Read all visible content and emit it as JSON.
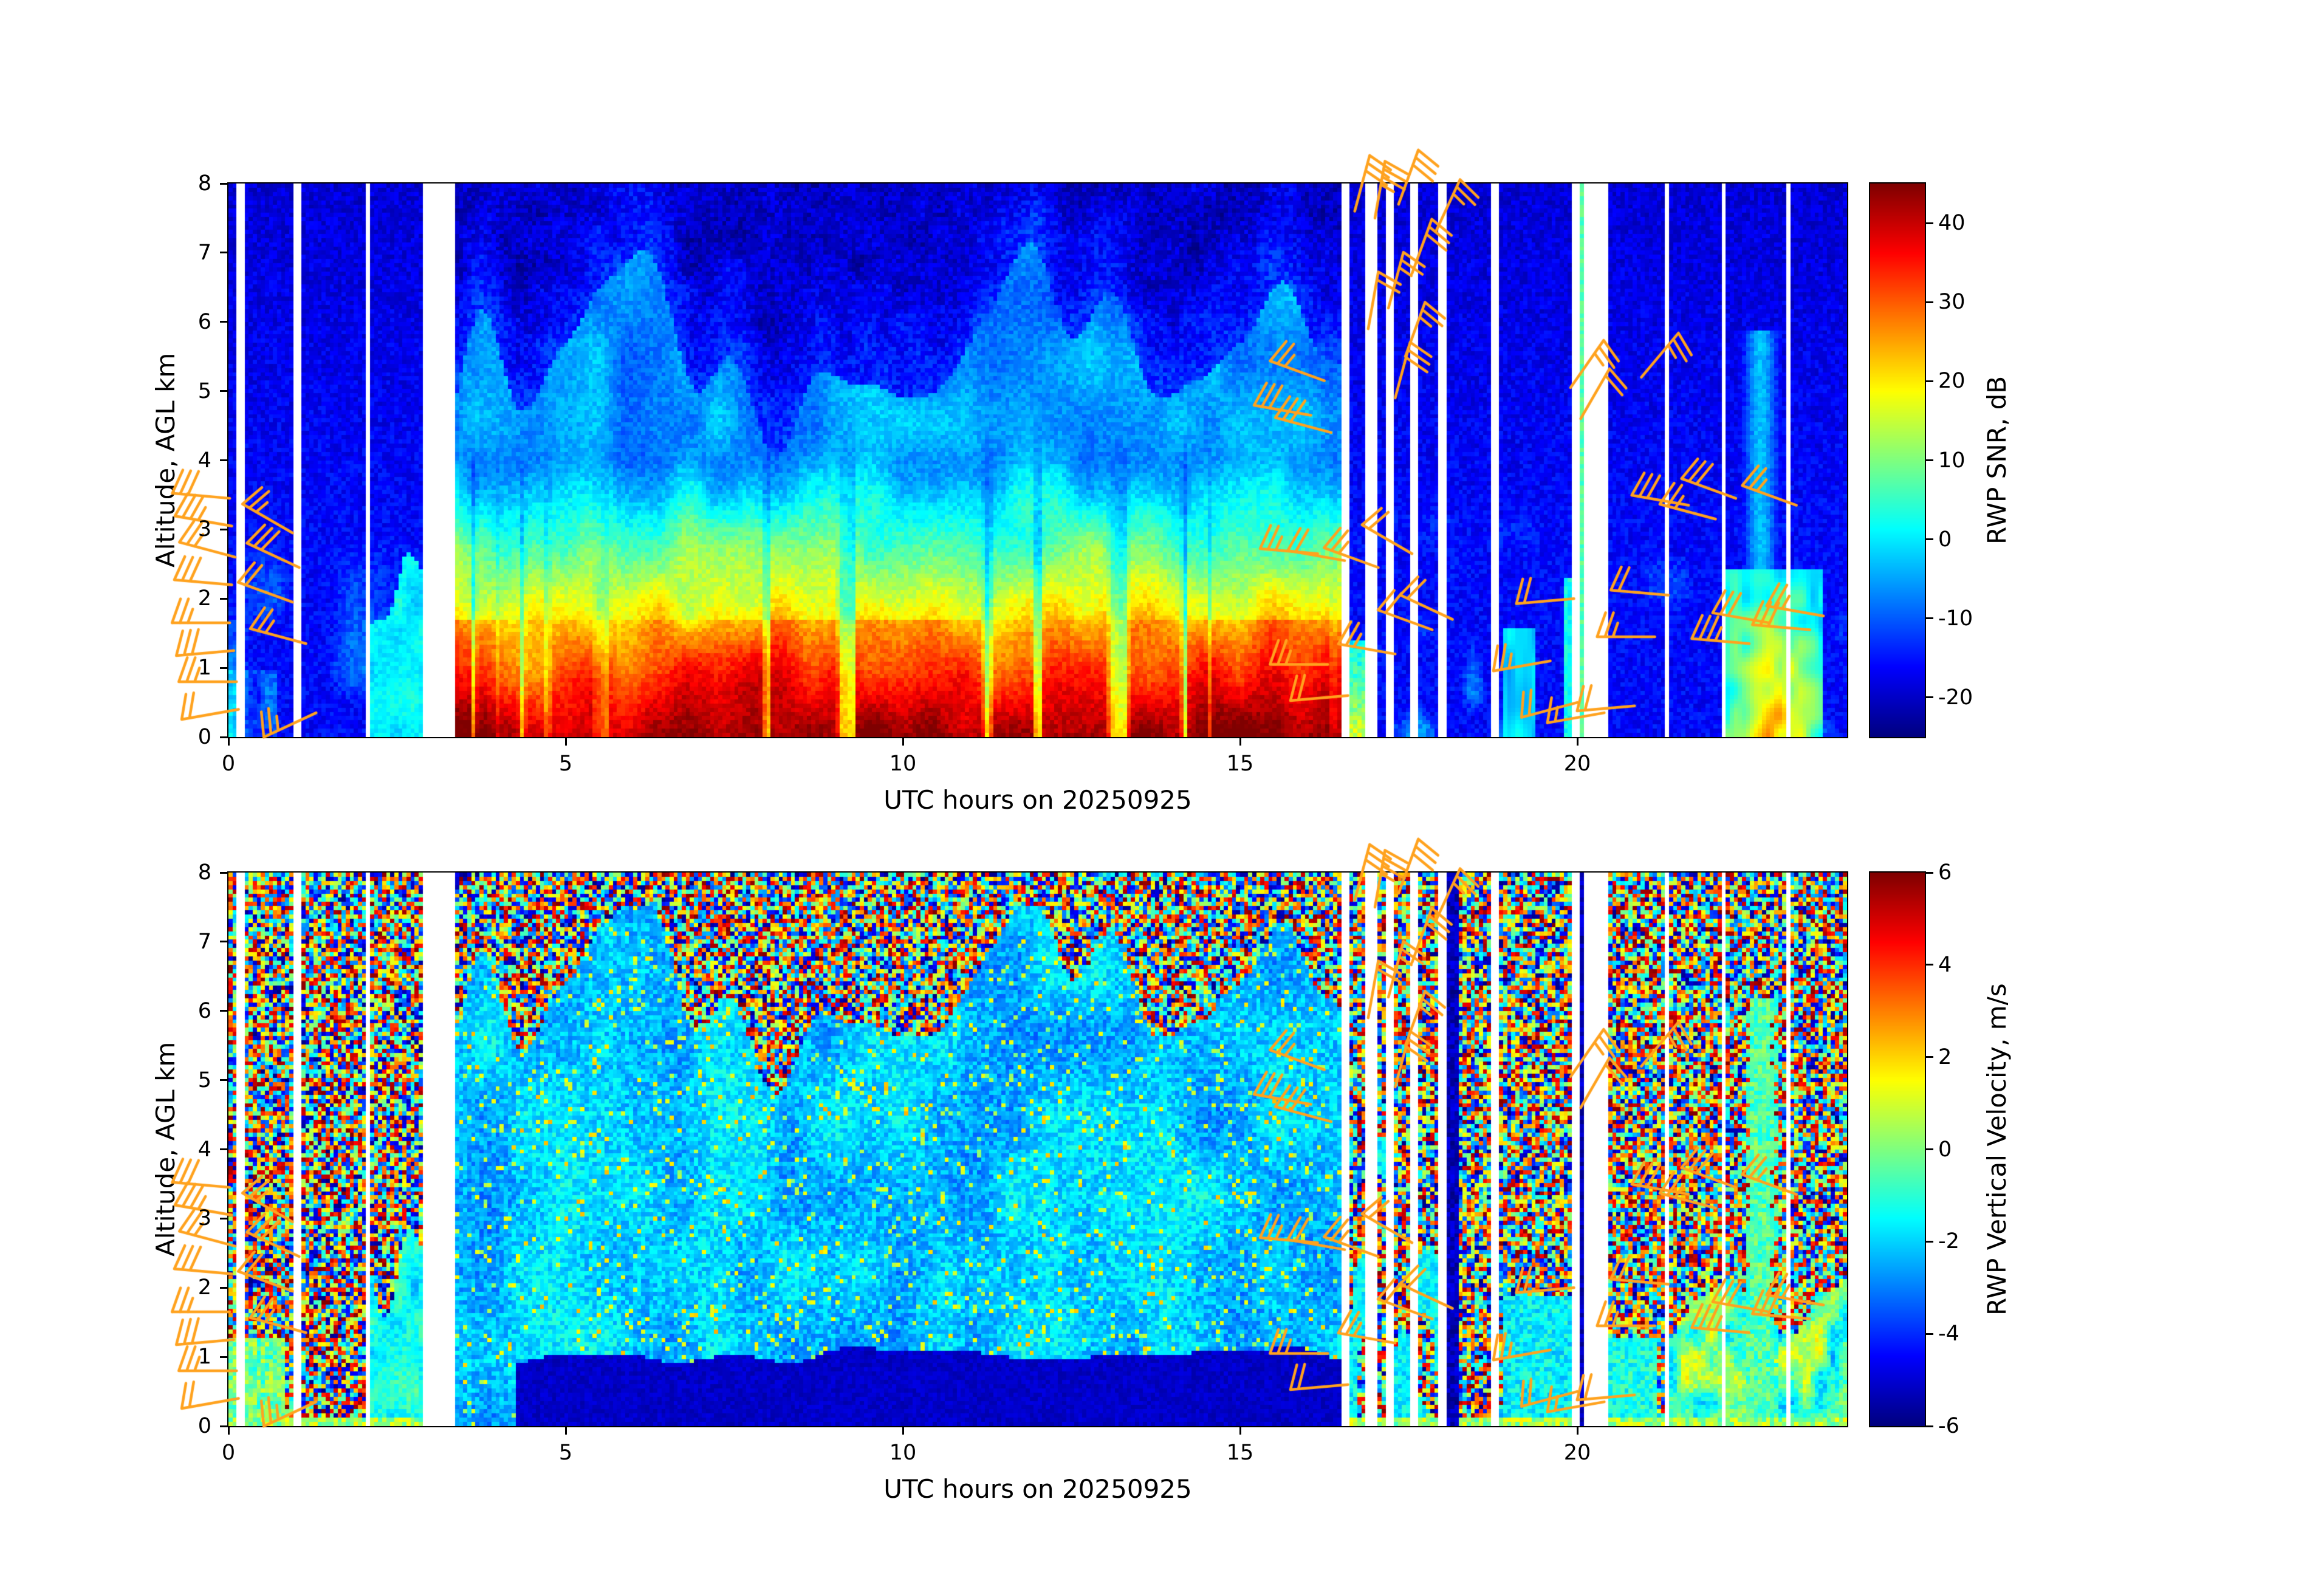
{
  "figure": {
    "background": "#ffffff"
  },
  "panels": [
    {
      "id": "snr",
      "xlabel": "UTC hours on 20250925",
      "ylabel": "Altitude, AGL km",
      "xlim": [
        0,
        24
      ],
      "ylim": [
        0,
        8
      ],
      "xticks": [
        "0",
        "5",
        "10",
        "15",
        "20"
      ],
      "xtick_values": [
        0,
        5,
        10,
        15,
        20
      ],
      "yticks": [
        "0",
        "1",
        "2",
        "3",
        "4",
        "5",
        "6",
        "7",
        "8"
      ],
      "ytick_values": [
        0,
        1,
        2,
        3,
        4,
        5,
        6,
        7,
        8
      ],
      "colorbar": {
        "label": "RWP SNR, dB",
        "tick_labels": [
          "-20",
          "-10",
          "0",
          "10",
          "20",
          "30",
          "40"
        ],
        "tick_values": [
          -20,
          -10,
          0,
          10,
          20,
          30,
          40
        ],
        "vmin": -25,
        "vmax": 45
      }
    },
    {
      "id": "velocity",
      "xlabel": "UTC hours on 20250925",
      "ylabel": "Altitude, AGL km",
      "xlim": [
        0,
        24
      ],
      "ylim": [
        0,
        8
      ],
      "xticks": [
        "0",
        "5",
        "10",
        "15",
        "20"
      ],
      "xtick_values": [
        0,
        5,
        10,
        15,
        20
      ],
      "yticks": [
        "0",
        "1",
        "2",
        "3",
        "4",
        "5",
        "6",
        "7",
        "8"
      ],
      "ytick_values": [
        0,
        1,
        2,
        3,
        4,
        5,
        6,
        7,
        8
      ],
      "colorbar": {
        "label": "RWP Vertical Velocity, m/s",
        "tick_labels": [
          "-6",
          "-4",
          "-2",
          "0",
          "2",
          "4",
          "6"
        ],
        "tick_values": [
          -6,
          -4,
          -2,
          0,
          2,
          4,
          6
        ],
        "vmin": -6,
        "vmax": 6
      }
    }
  ],
  "chart_data": [
    {
      "type": "heatmap",
      "name": "RWP SNR time-height plot",
      "xlabel": "UTC hours on 20250925",
      "ylabel": "Altitude, AGL km",
      "x_range": [
        0,
        24
      ],
      "y_range": [
        0,
        8
      ],
      "value_label": "RWP SNR, dB",
      "value_range": [
        -25,
        45
      ],
      "colormap": "jet",
      "no_data_gaps": [
        [
          0.1,
          0.22
        ],
        [
          0.98,
          1.06
        ],
        [
          2.02,
          2.1
        ],
        [
          2.9,
          2.97
        ],
        [
          3.03,
          3.38
        ],
        [
          16.53,
          16.64
        ],
        [
          16.84,
          17.02
        ],
        [
          17.15,
          17.3
        ],
        [
          17.55,
          17.63
        ],
        [
          17.97,
          18.06
        ],
        [
          18.75,
          18.84
        ],
        [
          19.93,
          20.02
        ],
        [
          20.1,
          20.45
        ],
        [
          21.3,
          21.36
        ],
        [
          22.13,
          22.2
        ],
        [
          23.11,
          23.18
        ]
      ],
      "boundary_layer": {
        "time": [
          3.38,
          16.53
        ],
        "surface_snr_db": 40,
        "lapse_db_per_km": 11.5,
        "top_km_base": 3.0,
        "plume_top_km_max": 7.3
      },
      "quiet_background_db": -16,
      "features": [
        {
          "time": [
            0,
            2.9
          ],
          "alt_km": [
            0,
            2.8
          ],
          "desc": "patchy cyan echoes",
          "snr_db": [
            -6,
            6
          ]
        },
        {
          "time": [
            16.64,
            16.97
          ],
          "alt_km": [
            0,
            1.4
          ],
          "desc": "residual warm streak",
          "snr_db": [
            8,
            18
          ]
        },
        {
          "time": [
            18.88,
            19.4
          ],
          "alt_km": [
            0,
            1.6
          ],
          "desc": "cyan patch",
          "snr_db": [
            -6,
            4
          ]
        },
        {
          "time": [
            19.8,
            19.94
          ],
          "alt_km": [
            0,
            2.3
          ],
          "desc": "green column",
          "snr_db": [
            0,
            8
          ]
        },
        {
          "time": [
            20.02,
            20.1
          ],
          "alt_km": [
            0,
            8
          ],
          "desc": "green stripe",
          "snr_db": [
            4,
            10
          ]
        },
        {
          "time": [
            22.15,
            23.65
          ],
          "alt_km": [
            0,
            2.4
          ],
          "desc": "warm echo pocket",
          "snr_db": [
            10,
            28
          ]
        },
        {
          "time": [
            22.3,
            23.2
          ],
          "alt_km": [
            0,
            5.9
          ],
          "desc": "narrow cyan plume",
          "snr_db": [
            -6,
            0
          ]
        }
      ]
    },
    {
      "type": "heatmap",
      "name": "RWP vertical velocity time-height plot",
      "xlabel": "UTC hours on 20250925",
      "ylabel": "Altitude, AGL km",
      "x_range": [
        0,
        24
      ],
      "y_range": [
        0,
        8
      ],
      "value_label": "RWP Vertical Velocity, m/s",
      "value_range": [
        -6,
        6
      ],
      "colormap": "jet",
      "no_data_gaps": [
        [
          0.1,
          0.22
        ],
        [
          0.98,
          1.06
        ],
        [
          2.02,
          2.1
        ],
        [
          2.9,
          2.97
        ],
        [
          3.03,
          3.38
        ],
        [
          16.53,
          16.64
        ],
        [
          16.84,
          17.02
        ],
        [
          17.15,
          17.3
        ],
        [
          17.55,
          17.63
        ],
        [
          17.97,
          18.06
        ],
        [
          18.75,
          18.84
        ],
        [
          19.93,
          20.02
        ],
        [
          20.1,
          20.45
        ],
        [
          21.3,
          21.36
        ],
        [
          22.13,
          22.2
        ],
        [
          23.11,
          23.18
        ]
      ],
      "coherent_layer": {
        "time": [
          3.38,
          16.53
        ],
        "velocity_ms": [
          -3,
          -0.5
        ]
      },
      "subsidence_core": {
        "time": [
          4.25,
          16.53
        ],
        "alt_km": [
          0,
          1.0
        ],
        "velocity_ms": [
          -6,
          -4.8
        ]
      },
      "noise_speckle_velocity_ms": [
        -6,
        6
      ],
      "features": [
        {
          "time": [
            2.12,
            3.0
          ],
          "alt_km": [
            0,
            3.0
          ],
          "velocity_ms": [
            -2.5,
            0
          ]
        },
        {
          "time": [
            18.06,
            18.24
          ],
          "alt_km": [
            0,
            8
          ],
          "velocity_ms": [
            -6,
            -4.5
          ]
        },
        {
          "time": [
            18.9,
            20.1
          ],
          "alt_km": [
            0,
            1.9
          ],
          "velocity_ms": [
            -2.5,
            -0.5
          ]
        },
        {
          "time": [
            20.02,
            20.1
          ],
          "alt_km": [
            0,
            8
          ],
          "velocity_ms": [
            -6,
            -4.5
          ]
        },
        {
          "time": [
            20.45,
            21.2
          ],
          "alt_km": [
            0,
            1.3
          ],
          "velocity_ms": [
            -2,
            -0.3
          ]
        },
        {
          "time": [
            21.3,
            24.0
          ],
          "alt_km": [
            0,
            2.1
          ],
          "velocity_ms": [
            -2,
            1.5
          ]
        },
        {
          "time": [
            22.35,
            23.15
          ],
          "alt_km": [
            0,
            6.2
          ],
          "velocity_ms": [
            -2.5,
            -0.5
          ]
        }
      ]
    }
  ],
  "wind_barbs": {
    "color": "#FFA21E",
    "shown_on_panels": [
      0,
      1
    ],
    "barbs": [
      [
        0.02,
        3.45,
        175,
        3,
        0
      ],
      [
        0.05,
        3.05,
        170,
        3,
        1
      ],
      [
        0.1,
        2.6,
        165,
        2,
        1
      ],
      [
        0.05,
        2.2,
        175,
        3,
        0
      ],
      [
        0.02,
        1.65,
        180,
        2,
        1
      ],
      [
        0.08,
        1.25,
        185,
        3,
        0
      ],
      [
        0.12,
        0.8,
        180,
        2,
        1
      ],
      [
        0.15,
        0.4,
        190,
        2,
        0
      ],
      [
        0.95,
        2.95,
        150,
        2,
        1
      ],
      [
        1.05,
        2.45,
        155,
        3,
        0
      ],
      [
        0.95,
        1.95,
        160,
        2,
        0
      ],
      [
        1.15,
        1.35,
        165,
        2,
        1
      ],
      [
        1.3,
        0.35,
        205,
        2,
        1
      ],
      [
        16.05,
        4.65,
        170,
        3,
        0
      ],
      [
        16.25,
        5.15,
        160,
        2,
        1
      ],
      [
        16.35,
        4.4,
        165,
        3,
        0
      ],
      [
        16.15,
        2.65,
        175,
        2,
        1
      ],
      [
        16.55,
        2.55,
        170,
        2,
        0
      ],
      [
        17.05,
        2.45,
        160,
        2,
        1
      ],
      [
        17.55,
        2.65,
        150,
        2,
        0
      ],
      [
        16.3,
        1.05,
        180,
        2,
        1
      ],
      [
        16.6,
        0.6,
        185,
        2,
        0
      ],
      [
        17.3,
        1.2,
        170,
        2,
        1
      ],
      [
        17.85,
        1.55,
        160,
        2,
        0
      ],
      [
        18.15,
        1.7,
        155,
        2,
        0
      ],
      [
        16.7,
        7.6,
        75,
        3,
        0
      ],
      [
        17.0,
        7.5,
        80,
        3,
        1
      ],
      [
        17.35,
        7.7,
        70,
        3,
        0
      ],
      [
        17.9,
        7.3,
        65,
        2,
        1
      ],
      [
        17.55,
        6.7,
        70,
        3,
        0
      ],
      [
        17.2,
        6.2,
        75,
        2,
        1
      ],
      [
        16.9,
        5.9,
        80,
        2,
        0
      ],
      [
        17.45,
        5.5,
        70,
        2,
        1
      ],
      [
        17.3,
        4.9,
        75,
        3,
        0
      ],
      [
        19.9,
        5.05,
        55,
        2,
        1
      ],
      [
        20.05,
        4.6,
        60,
        2,
        0
      ],
      [
        20.95,
        5.2,
        50,
        2,
        1
      ],
      [
        19.95,
        2.0,
        185,
        2,
        0
      ],
      [
        19.6,
        1.1,
        190,
        2,
        1
      ],
      [
        20.0,
        0.5,
        195,
        2,
        0
      ],
      [
        20.4,
        0.35,
        190,
        1,
        1
      ],
      [
        20.85,
        0.45,
        185,
        2,
        0
      ],
      [
        21.15,
        1.45,
        180,
        2,
        1
      ],
      [
        21.35,
        2.05,
        175,
        2,
        0
      ],
      [
        21.65,
        3.35,
        170,
        3,
        0
      ],
      [
        22.05,
        3.15,
        165,
        2,
        1
      ],
      [
        22.35,
        3.45,
        160,
        3,
        0
      ],
      [
        22.55,
        1.35,
        175,
        3,
        1
      ],
      [
        22.85,
        1.65,
        170,
        3,
        0
      ],
      [
        23.25,
        3.35,
        160,
        2,
        1
      ],
      [
        23.45,
        1.55,
        175,
        3,
        0
      ],
      [
        23.65,
        1.75,
        170,
        2,
        1
      ]
    ]
  }
}
